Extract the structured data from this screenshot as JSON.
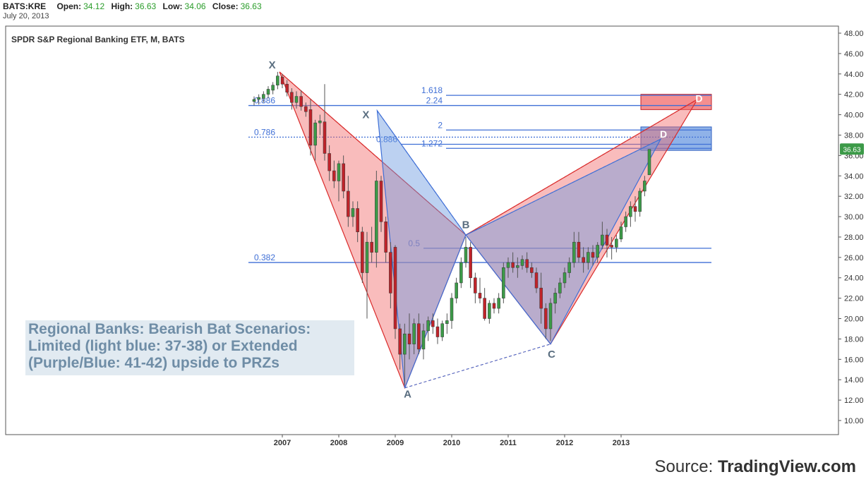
{
  "header": {
    "symbol": "BATS:KRE",
    "open_label": "Open:",
    "open": "34.12",
    "high_label": "High:",
    "high": "36.63",
    "low_label": "Low:",
    "low": "34.06",
    "close_label": "Close:",
    "close": "36.63",
    "date": "July 20, 2013"
  },
  "colors": {
    "up": "#3c9a48",
    "down": "#c0232a",
    "wick": "#555555",
    "red_fill": "#f26a6a",
    "blue_fill": "#6a98e0",
    "fib_line": "#3f6fd6",
    "fib_text": "#3f6fd6",
    "last_price_bg": "#3c9a48"
  },
  "chart_data": {
    "type": "candlestick",
    "title": "SPDR S&P Regional Banking ETF, M, BATS",
    "y_range": [
      9,
      48
    ],
    "y_ticks": [
      "48.00",
      "46.00",
      "44.00",
      "42.00",
      "40.00",
      "38.00",
      "36.00",
      "34.00",
      "32.00",
      "30.00",
      "28.00",
      "26.00",
      "24.00",
      "22.00",
      "20.00",
      "18.00",
      "16.00",
      "14.00",
      "12.00",
      "10.00"
    ],
    "x_ticks": [
      {
        "label": "2007",
        "t": 2007.0
      },
      {
        "label": "2008",
        "t": 2008.0
      },
      {
        "label": "2009",
        "t": 2009.0
      },
      {
        "label": "2010",
        "t": 2010.0
      },
      {
        "label": "2011",
        "t": 2011.0
      },
      {
        "label": "2012",
        "t": 2012.0
      },
      {
        "label": "2013",
        "t": 2013.0
      }
    ],
    "x_range": [
      2006.0,
      2014.6
    ],
    "last_price": "36.63",
    "last_price_value": 36.63,
    "candles": [
      {
        "t": 2006.5,
        "o": 41.3,
        "h": 41.8,
        "l": 40.9,
        "c": 41.5
      },
      {
        "t": 2006.583,
        "o": 41.5,
        "h": 42.0,
        "l": 41.0,
        "c": 41.7
      },
      {
        "t": 2006.667,
        "o": 41.6,
        "h": 42.3,
        "l": 41.2,
        "c": 42.0
      },
      {
        "t": 2006.75,
        "o": 42.0,
        "h": 42.8,
        "l": 41.6,
        "c": 42.5
      },
      {
        "t": 2006.833,
        "o": 42.4,
        "h": 43.2,
        "l": 42.0,
        "c": 42.9
      },
      {
        "t": 2006.917,
        "o": 42.9,
        "h": 44.2,
        "l": 42.5,
        "c": 43.8
      },
      {
        "t": 2007.0,
        "o": 43.7,
        "h": 44.0,
        "l": 42.6,
        "c": 43.0
      },
      {
        "t": 2007.083,
        "o": 43.0,
        "h": 43.4,
        "l": 41.8,
        "c": 42.2
      },
      {
        "t": 2007.167,
        "o": 42.2,
        "h": 42.6,
        "l": 40.5,
        "c": 41.2
      },
      {
        "t": 2007.25,
        "o": 41.2,
        "h": 42.3,
        "l": 40.6,
        "c": 41.8
      },
      {
        "t": 2007.333,
        "o": 41.8,
        "h": 42.4,
        "l": 40.4,
        "c": 40.8
      },
      {
        "t": 2007.417,
        "o": 40.8,
        "h": 41.2,
        "l": 39.8,
        "c": 40.3
      },
      {
        "t": 2007.5,
        "o": 40.5,
        "h": 41.5,
        "l": 36.0,
        "c": 37.0
      },
      {
        "t": 2007.583,
        "o": 37.0,
        "h": 39.5,
        "l": 35.5,
        "c": 39.2
      },
      {
        "t": 2007.667,
        "o": 39.2,
        "h": 40.0,
        "l": 38.0,
        "c": 39.4
      },
      {
        "t": 2007.75,
        "o": 39.3,
        "h": 43.0,
        "l": 35.5,
        "c": 36.2
      },
      {
        "t": 2007.833,
        "o": 36.2,
        "h": 37.0,
        "l": 33.5,
        "c": 34.5
      },
      {
        "t": 2007.917,
        "o": 34.5,
        "h": 35.5,
        "l": 32.8,
        "c": 33.5
      },
      {
        "t": 2008.0,
        "o": 33.5,
        "h": 35.5,
        "l": 31.5,
        "c": 35.2
      },
      {
        "t": 2008.083,
        "o": 35.2,
        "h": 36.0,
        "l": 31.8,
        "c": 32.5
      },
      {
        "t": 2008.167,
        "o": 32.5,
        "h": 34.0,
        "l": 29.0,
        "c": 30.0
      },
      {
        "t": 2008.25,
        "o": 30.0,
        "h": 31.5,
        "l": 29.0,
        "c": 30.8
      },
      {
        "t": 2008.333,
        "o": 30.8,
        "h": 31.5,
        "l": 27.5,
        "c": 28.5
      },
      {
        "t": 2008.417,
        "o": 28.5,
        "h": 29.0,
        "l": 23.5,
        "c": 24.5
      },
      {
        "t": 2008.5,
        "o": 24.5,
        "h": 28.5,
        "l": 20.0,
        "c": 27.5
      },
      {
        "t": 2008.583,
        "o": 27.5,
        "h": 29.0,
        "l": 25.5,
        "c": 26.5
      },
      {
        "t": 2008.667,
        "o": 26.5,
        "h": 34.5,
        "l": 25.0,
        "c": 33.5
      },
      {
        "t": 2008.75,
        "o": 33.5,
        "h": 34.0,
        "l": 28.5,
        "c": 29.5
      },
      {
        "t": 2008.833,
        "o": 29.5,
        "h": 30.0,
        "l": 25.5,
        "c": 26.5
      },
      {
        "t": 2008.917,
        "o": 26.5,
        "h": 27.5,
        "l": 21.0,
        "c": 22.5
      },
      {
        "t": 2009.0,
        "o": 27.0,
        "h": 27.2,
        "l": 18.0,
        "c": 19.0
      },
      {
        "t": 2009.083,
        "o": 19.0,
        "h": 19.5,
        "l": 15.0,
        "c": 16.5
      },
      {
        "t": 2009.167,
        "o": 16.5,
        "h": 19.5,
        "l": 13.5,
        "c": 18.5
      },
      {
        "t": 2009.25,
        "o": 18.5,
        "h": 20.5,
        "l": 16.0,
        "c": 17.5
      },
      {
        "t": 2009.333,
        "o": 17.5,
        "h": 20.0,
        "l": 16.5,
        "c": 19.5
      },
      {
        "t": 2009.417,
        "o": 19.5,
        "h": 20.5,
        "l": 16.5,
        "c": 17.0
      },
      {
        "t": 2009.5,
        "o": 17.0,
        "h": 19.5,
        "l": 16.0,
        "c": 18.8
      },
      {
        "t": 2009.583,
        "o": 18.8,
        "h": 20.2,
        "l": 17.8,
        "c": 19.8
      },
      {
        "t": 2009.667,
        "o": 19.8,
        "h": 20.5,
        "l": 18.5,
        "c": 19.2
      },
      {
        "t": 2009.75,
        "o": 19.2,
        "h": 20.0,
        "l": 17.5,
        "c": 18.2
      },
      {
        "t": 2009.833,
        "o": 18.2,
        "h": 19.8,
        "l": 17.8,
        "c": 19.5
      },
      {
        "t": 2009.917,
        "o": 19.5,
        "h": 20.5,
        "l": 18.5,
        "c": 19.8
      },
      {
        "t": 2010.0,
        "o": 19.8,
        "h": 22.5,
        "l": 19.0,
        "c": 22.0
      },
      {
        "t": 2010.083,
        "o": 22.0,
        "h": 24.0,
        "l": 21.5,
        "c": 23.5
      },
      {
        "t": 2010.167,
        "o": 23.5,
        "h": 26.0,
        "l": 23.0,
        "c": 25.5
      },
      {
        "t": 2010.25,
        "o": 25.5,
        "h": 28.0,
        "l": 25.0,
        "c": 27.0
      },
      {
        "t": 2010.333,
        "o": 27.0,
        "h": 27.5,
        "l": 23.0,
        "c": 24.0
      },
      {
        "t": 2010.417,
        "o": 24.0,
        "h": 24.5,
        "l": 21.5,
        "c": 22.5
      },
      {
        "t": 2010.5,
        "o": 22.5,
        "h": 24.0,
        "l": 21.5,
        "c": 22.0
      },
      {
        "t": 2010.583,
        "o": 22.0,
        "h": 23.0,
        "l": 19.8,
        "c": 20.0
      },
      {
        "t": 2010.667,
        "o": 20.0,
        "h": 21.8,
        "l": 19.5,
        "c": 21.5
      },
      {
        "t": 2010.75,
        "o": 21.5,
        "h": 22.0,
        "l": 20.5,
        "c": 21.0
      },
      {
        "t": 2010.833,
        "o": 21.0,
        "h": 22.5,
        "l": 20.5,
        "c": 22.0
      },
      {
        "t": 2010.917,
        "o": 22.0,
        "h": 25.5,
        "l": 21.5,
        "c": 25.0
      },
      {
        "t": 2011.0,
        "o": 25.0,
        "h": 26.0,
        "l": 24.0,
        "c": 25.5
      },
      {
        "t": 2011.083,
        "o": 25.5,
        "h": 26.5,
        "l": 24.5,
        "c": 25.0
      },
      {
        "t": 2011.167,
        "o": 25.0,
        "h": 26.0,
        "l": 24.0,
        "c": 25.2
      },
      {
        "t": 2011.25,
        "o": 25.2,
        "h": 26.2,
        "l": 24.8,
        "c": 25.8
      },
      {
        "t": 2011.333,
        "o": 25.8,
        "h": 26.5,
        "l": 24.5,
        "c": 25.0
      },
      {
        "t": 2011.417,
        "o": 25.0,
        "h": 25.5,
        "l": 24.0,
        "c": 24.5
      },
      {
        "t": 2011.5,
        "o": 24.5,
        "h": 25.0,
        "l": 22.5,
        "c": 23.0
      },
      {
        "t": 2011.583,
        "o": 23.0,
        "h": 24.5,
        "l": 19.5,
        "c": 21.0
      },
      {
        "t": 2011.667,
        "o": 21.0,
        "h": 21.5,
        "l": 18.0,
        "c": 19.0
      },
      {
        "t": 2011.75,
        "o": 19.0,
        "h": 22.0,
        "l": 17.8,
        "c": 21.5
      },
      {
        "t": 2011.833,
        "o": 21.5,
        "h": 23.0,
        "l": 20.5,
        "c": 22.5
      },
      {
        "t": 2011.917,
        "o": 22.5,
        "h": 24.0,
        "l": 22.0,
        "c": 23.5
      },
      {
        "t": 2012.0,
        "o": 23.5,
        "h": 25.0,
        "l": 23.0,
        "c": 24.5
      },
      {
        "t": 2012.083,
        "o": 24.5,
        "h": 26.0,
        "l": 24.0,
        "c": 25.5
      },
      {
        "t": 2012.167,
        "o": 25.5,
        "h": 28.5,
        "l": 25.0,
        "c": 27.5
      },
      {
        "t": 2012.25,
        "o": 27.5,
        "h": 28.5,
        "l": 25.5,
        "c": 26.0
      },
      {
        "t": 2012.333,
        "o": 26.0,
        "h": 27.0,
        "l": 24.5,
        "c": 25.5
      },
      {
        "t": 2012.417,
        "o": 25.5,
        "h": 27.0,
        "l": 24.8,
        "c": 26.5
      },
      {
        "t": 2012.5,
        "o": 26.5,
        "h": 27.2,
        "l": 25.2,
        "c": 26.0
      },
      {
        "t": 2012.583,
        "o": 26.0,
        "h": 27.5,
        "l": 25.5,
        "c": 27.2
      },
      {
        "t": 2012.667,
        "o": 27.2,
        "h": 29.5,
        "l": 26.8,
        "c": 28.2
      },
      {
        "t": 2012.75,
        "o": 28.2,
        "h": 28.8,
        "l": 26.0,
        "c": 27.2
      },
      {
        "t": 2012.833,
        "o": 27.2,
        "h": 28.0,
        "l": 25.8,
        "c": 27.0
      },
      {
        "t": 2012.917,
        "o": 27.0,
        "h": 28.2,
        "l": 26.5,
        "c": 27.8
      },
      {
        "t": 2013.0,
        "o": 27.8,
        "h": 29.5,
        "l": 27.5,
        "c": 29.0
      },
      {
        "t": 2013.083,
        "o": 29.0,
        "h": 30.5,
        "l": 28.5,
        "c": 30.0
      },
      {
        "t": 2013.167,
        "o": 30.0,
        "h": 31.5,
        "l": 29.0,
        "c": 31.0
      },
      {
        "t": 2013.25,
        "o": 31.0,
        "h": 32.0,
        "l": 29.5,
        "c": 30.5
      },
      {
        "t": 2013.333,
        "o": 30.5,
        "h": 32.8,
        "l": 30.0,
        "c": 32.5
      },
      {
        "t": 2013.417,
        "o": 32.5,
        "h": 34.0,
        "l": 32.0,
        "c": 33.5
      },
      {
        "t": 2013.5,
        "o": 34.1,
        "h": 36.6,
        "l": 34.1,
        "c": 36.6
      }
    ],
    "fib_levels": [
      {
        "label": "1.618",
        "value": 41.9,
        "t_start": 2009.9,
        "t_end": 2014.6,
        "style": "solid"
      },
      {
        "label": "2.24",
        "value": 40.9,
        "t_start": 2009.9,
        "t_end": 2014.6,
        "style": "solid"
      },
      {
        "label": "0.886",
        "value": 40.9,
        "t_start": 2006.4,
        "t_end": 2009.9,
        "style": "solid",
        "label_side": "left"
      },
      {
        "label": "2",
        "value": 38.5,
        "t_start": 2009.9,
        "t_end": 2014.6,
        "style": "solid"
      },
      {
        "label": "0.786",
        "value": 37.8,
        "t_start": 2006.4,
        "t_end": 2014.6,
        "style": "dotted",
        "label_side": "left"
      },
      {
        "label": "0.886",
        "value": 37.1,
        "t_start": 2009.1,
        "t_end": 2014.6,
        "style": "solid",
        "label_side": "left2"
      },
      {
        "label": "1.272",
        "value": 36.7,
        "t_start": 2009.9,
        "t_end": 2014.6,
        "style": "solid"
      },
      {
        "label": "0.5",
        "value": 26.9,
        "t_start": 2009.5,
        "t_end": 2014.6,
        "style": "solid",
        "label_side": "left2"
      },
      {
        "label": "0.382",
        "value": 25.5,
        "t_start": 2006.4,
        "t_end": 2014.6,
        "style": "solid",
        "label_side": "left"
      }
    ],
    "prz_zones": [
      {
        "name": "red",
        "top": 42.0,
        "bottom": 40.5,
        "t_start": 2013.35,
        "t_end": 2014.6
      },
      {
        "name": "blue",
        "top": 38.8,
        "bottom": 36.5,
        "t_start": 2013.35,
        "t_end": 2014.6
      }
    ],
    "patterns": [
      {
        "name": "red",
        "points": [
          {
            "label": "X",
            "t": 2006.95,
            "v": 44.2
          },
          {
            "label": "A",
            "t": 2009.17,
            "v": 13.2
          },
          {
            "label": "B",
            "t": 2010.25,
            "v": 28.2
          },
          {
            "label": "C",
            "t": 2011.75,
            "v": 17.5
          },
          {
            "label": "D",
            "t": 2014.35,
            "v": 41.5
          }
        ]
      },
      {
        "name": "blue",
        "points": [
          {
            "label": "X",
            "t": 2008.68,
            "v": 40.4
          },
          {
            "label": "A",
            "t": 2009.17,
            "v": 13.2
          },
          {
            "label": "B",
            "t": 2010.25,
            "v": 28.2
          },
          {
            "label": "C",
            "t": 2011.75,
            "v": 17.5
          },
          {
            "label": "D",
            "t": 2013.7,
            "v": 37.6
          }
        ]
      }
    ],
    "point_labels": [
      {
        "text": "X",
        "t": 2006.82,
        "v": 44.9
      },
      {
        "text": "X",
        "t": 2008.48,
        "v": 40.0
      },
      {
        "text": "A",
        "t": 2009.22,
        "v": 12.6
      },
      {
        "text": "B",
        "t": 2010.25,
        "v": 29.2
      },
      {
        "text": "C",
        "t": 2011.77,
        "v": 16.5
      },
      {
        "text": "D",
        "t": 2013.75,
        "v": 38.1,
        "badge": true
      },
      {
        "text": "D",
        "t": 2014.38,
        "v": 41.6,
        "badge": true
      }
    ]
  },
  "annotation": {
    "line1": "Regional Banks: Bearish Bat Scenarios:",
    "line2": "Limited (light blue: 37-38) or Extended",
    "line3": "(Purple/Blue: 41-42) upside to PRZs"
  },
  "source": {
    "prefix": "Source: ",
    "brand": "TradingView.com"
  }
}
